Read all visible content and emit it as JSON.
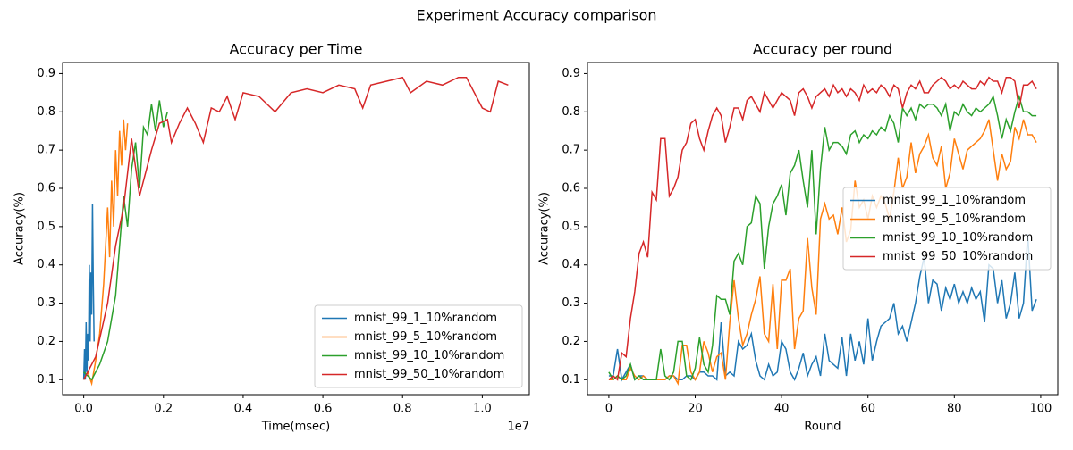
{
  "title": "Experiment Accuracy comparison",
  "chart_data": [
    {
      "type": "line",
      "title": "Accuracy per Time",
      "x_label": "Time(msec)",
      "y_label": "Accuracy(%)",
      "x_offset_label": "1e7",
      "xlim": [
        -0.053,
        1.118
      ],
      "ylim": [
        0.061,
        0.929
      ],
      "xticks": [
        {
          "value": 0,
          "label": "0.0"
        },
        0.2,
        0.4,
        0.6,
        0.8,
        {
          "value": 1,
          "label": "1.0"
        }
      ],
      "yticks": [
        0.1,
        0.2,
        0.3,
        0.4,
        0.5,
        0.6,
        0.7,
        0.8,
        0.9
      ],
      "legend": "lower right",
      "series": [
        {
          "name": "mnist_99_1_10%random",
          "color": "#1f77b4",
          "x": [
            0,
            0.002,
            0.004,
            0.006,
            0.008,
            0.01,
            0.012,
            0.014,
            0.016,
            0.018,
            0.02,
            0.022,
            0.024,
            0.026
          ],
          "values": [
            0.1,
            0.18,
            0.1,
            0.25,
            0.12,
            0.22,
            0.15,
            0.4,
            0.2,
            0.38,
            0.27,
            0.56,
            0.35,
            0.2
          ]
        },
        {
          "name": "mnist_99_5_10%random",
          "color": "#ff7f0e",
          "x": [
            0,
            0.01,
            0.02,
            0.03,
            0.04,
            0.05,
            0.06,
            0.065,
            0.07,
            0.075,
            0.08,
            0.085,
            0.09,
            0.095,
            0.1,
            0.105,
            0.11
          ],
          "values": [
            0.1,
            0.12,
            0.09,
            0.15,
            0.22,
            0.35,
            0.55,
            0.42,
            0.62,
            0.5,
            0.7,
            0.58,
            0.75,
            0.66,
            0.78,
            0.7,
            0.77
          ]
        },
        {
          "name": "mnist_99_10_10%random",
          "color": "#2ca02c",
          "x": [
            0,
            0.02,
            0.04,
            0.06,
            0.08,
            0.09,
            0.1,
            0.11,
            0.12,
            0.13,
            0.14,
            0.15,
            0.16,
            0.17,
            0.18,
            0.19,
            0.2,
            0.21
          ],
          "values": [
            0.12,
            0.1,
            0.14,
            0.2,
            0.32,
            0.45,
            0.58,
            0.5,
            0.65,
            0.72,
            0.6,
            0.76,
            0.74,
            0.82,
            0.75,
            0.83,
            0.76,
            0.8
          ]
        },
        {
          "name": "mnist_99_50_10%random",
          "color": "#d62728",
          "x": [
            0,
            0.03,
            0.06,
            0.08,
            0.1,
            0.12,
            0.14,
            0.15,
            0.17,
            0.19,
            0.21,
            0.22,
            0.24,
            0.26,
            0.28,
            0.3,
            0.32,
            0.34,
            0.36,
            0.38,
            0.4,
            0.44,
            0.48,
            0.52,
            0.56,
            0.6,
            0.64,
            0.68,
            0.7,
            0.72,
            0.76,
            0.8,
            0.82,
            0.86,
            0.9,
            0.94,
            0.96,
            1.0,
            1.02,
            1.04,
            1.065
          ],
          "values": [
            0.1,
            0.16,
            0.3,
            0.45,
            0.55,
            0.73,
            0.58,
            0.62,
            0.7,
            0.77,
            0.78,
            0.72,
            0.77,
            0.81,
            0.77,
            0.72,
            0.81,
            0.8,
            0.84,
            0.78,
            0.85,
            0.84,
            0.8,
            0.85,
            0.86,
            0.85,
            0.87,
            0.86,
            0.81,
            0.87,
            0.88,
            0.89,
            0.85,
            0.88,
            0.87,
            0.89,
            0.89,
            0.81,
            0.8,
            0.88,
            0.87
          ]
        }
      ]
    },
    {
      "type": "line",
      "title": "Accuracy per round",
      "x_label": "Round",
      "y_label": "Accuracy(%)",
      "xlim": [
        -4.95,
        103.95
      ],
      "ylim": [
        0.061,
        0.929
      ],
      "xticks": [
        0,
        20,
        40,
        60,
        80,
        100
      ],
      "yticks": [
        0.1,
        0.2,
        0.3,
        0.4,
        0.5,
        0.6,
        0.7,
        0.8,
        0.9
      ],
      "legend": "center right",
      "x": [
        0,
        1,
        2,
        3,
        4,
        5,
        6,
        7,
        8,
        9,
        10,
        11,
        12,
        13,
        14,
        15,
        16,
        17,
        18,
        19,
        20,
        21,
        22,
        23,
        24,
        25,
        26,
        27,
        28,
        29,
        30,
        31,
        32,
        33,
        34,
        35,
        36,
        37,
        38,
        39,
        40,
        41,
        42,
        43,
        44,
        45,
        46,
        47,
        48,
        49,
        50,
        51,
        52,
        53,
        54,
        55,
        56,
        57,
        58,
        59,
        60,
        61,
        62,
        63,
        64,
        65,
        66,
        67,
        68,
        69,
        70,
        71,
        72,
        73,
        74,
        75,
        76,
        77,
        78,
        79,
        80,
        81,
        82,
        83,
        84,
        85,
        86,
        87,
        88,
        89,
        90,
        91,
        92,
        93,
        94,
        95,
        96,
        97,
        98,
        99
      ],
      "series": [
        {
          "name": "mnist_99_1_10%random",
          "color": "#1f77b4",
          "values": [
            0.11,
            0.11,
            0.18,
            0.1,
            0.12,
            0.14,
            0.1,
            0.11,
            0.11,
            0.1,
            0.1,
            0.1,
            0.1,
            0.1,
            0.11,
            0.11,
            0.1,
            0.1,
            0.11,
            0.11,
            0.1,
            0.12,
            0.12,
            0.11,
            0.11,
            0.1,
            0.25,
            0.11,
            0.12,
            0.11,
            0.2,
            0.18,
            0.19,
            0.22,
            0.15,
            0.11,
            0.1,
            0.14,
            0.11,
            0.12,
            0.2,
            0.18,
            0.12,
            0.1,
            0.13,
            0.17,
            0.11,
            0.14,
            0.16,
            0.11,
            0.22,
            0.15,
            0.14,
            0.13,
            0.21,
            0.11,
            0.22,
            0.15,
            0.2,
            0.14,
            0.26,
            0.15,
            0.2,
            0.24,
            0.25,
            0.26,
            0.3,
            0.22,
            0.24,
            0.2,
            0.25,
            0.3,
            0.37,
            0.42,
            0.3,
            0.36,
            0.35,
            0.28,
            0.34,
            0.31,
            0.35,
            0.3,
            0.33,
            0.3,
            0.34,
            0.31,
            0.33,
            0.25,
            0.4,
            0.39,
            0.3,
            0.36,
            0.26,
            0.3,
            0.38,
            0.26,
            0.3,
            0.48,
            0.28,
            0.31
          ]
        },
        {
          "name": "mnist_99_5_10%random",
          "color": "#ff7f0e",
          "values": [
            0.1,
            0.1,
            0.11,
            0.1,
            0.1,
            0.13,
            0.11,
            0.1,
            0.11,
            0.1,
            0.1,
            0.1,
            0.1,
            0.1,
            0.11,
            0.11,
            0.09,
            0.19,
            0.19,
            0.12,
            0.1,
            0.12,
            0.2,
            0.17,
            0.12,
            0.16,
            0.17,
            0.1,
            0.25,
            0.36,
            0.26,
            0.19,
            0.22,
            0.27,
            0.31,
            0.37,
            0.22,
            0.2,
            0.35,
            0.18,
            0.36,
            0.36,
            0.39,
            0.18,
            0.26,
            0.28,
            0.47,
            0.34,
            0.27,
            0.52,
            0.56,
            0.52,
            0.53,
            0.48,
            0.55,
            0.46,
            0.49,
            0.62,
            0.55,
            0.57,
            0.52,
            0.58,
            0.55,
            0.58,
            0.56,
            0.52,
            0.59,
            0.68,
            0.6,
            0.63,
            0.72,
            0.64,
            0.69,
            0.71,
            0.74,
            0.68,
            0.66,
            0.71,
            0.6,
            0.64,
            0.73,
            0.69,
            0.65,
            0.7,
            0.71,
            0.72,
            0.73,
            0.75,
            0.78,
            0.7,
            0.62,
            0.69,
            0.65,
            0.67,
            0.76,
            0.73,
            0.78,
            0.74,
            0.74,
            0.72
          ]
        },
        {
          "name": "mnist_99_10_10%random",
          "color": "#2ca02c",
          "values": [
            0.12,
            0.1,
            0.11,
            0.1,
            0.11,
            0.14,
            0.1,
            0.11,
            0.1,
            0.1,
            0.1,
            0.1,
            0.18,
            0.11,
            0.1,
            0.12,
            0.2,
            0.2,
            0.11,
            0.1,
            0.13,
            0.21,
            0.14,
            0.12,
            0.19,
            0.32,
            0.31,
            0.31,
            0.27,
            0.41,
            0.43,
            0.4,
            0.5,
            0.51,
            0.58,
            0.56,
            0.39,
            0.5,
            0.56,
            0.58,
            0.61,
            0.53,
            0.64,
            0.66,
            0.7,
            0.62,
            0.55,
            0.7,
            0.48,
            0.65,
            0.76,
            0.7,
            0.72,
            0.72,
            0.71,
            0.69,
            0.74,
            0.75,
            0.72,
            0.74,
            0.73,
            0.75,
            0.74,
            0.76,
            0.75,
            0.79,
            0.77,
            0.72,
            0.81,
            0.79,
            0.81,
            0.78,
            0.82,
            0.81,
            0.82,
            0.82,
            0.81,
            0.79,
            0.82,
            0.75,
            0.8,
            0.79,
            0.82,
            0.8,
            0.79,
            0.81,
            0.8,
            0.81,
            0.82,
            0.84,
            0.79,
            0.73,
            0.78,
            0.75,
            0.8,
            0.84,
            0.8,
            0.8,
            0.79,
            0.79
          ]
        },
        {
          "name": "mnist_99_50_10%random",
          "color": "#d62728",
          "values": [
            0.1,
            0.11,
            0.1,
            0.17,
            0.16,
            0.26,
            0.33,
            0.43,
            0.46,
            0.42,
            0.59,
            0.57,
            0.73,
            0.73,
            0.58,
            0.6,
            0.63,
            0.7,
            0.72,
            0.77,
            0.78,
            0.73,
            0.7,
            0.75,
            0.79,
            0.81,
            0.79,
            0.72,
            0.76,
            0.81,
            0.81,
            0.78,
            0.83,
            0.84,
            0.82,
            0.8,
            0.85,
            0.83,
            0.81,
            0.83,
            0.85,
            0.84,
            0.83,
            0.79,
            0.85,
            0.86,
            0.84,
            0.81,
            0.84,
            0.85,
            0.86,
            0.84,
            0.87,
            0.85,
            0.86,
            0.84,
            0.86,
            0.85,
            0.83,
            0.87,
            0.85,
            0.86,
            0.85,
            0.87,
            0.86,
            0.84,
            0.87,
            0.86,
            0.81,
            0.85,
            0.87,
            0.86,
            0.88,
            0.85,
            0.85,
            0.87,
            0.88,
            0.89,
            0.88,
            0.86,
            0.87,
            0.86,
            0.88,
            0.87,
            0.86,
            0.86,
            0.88,
            0.87,
            0.89,
            0.88,
            0.88,
            0.85,
            0.89,
            0.89,
            0.88,
            0.81,
            0.87,
            0.87,
            0.88,
            0.86
          ]
        }
      ]
    }
  ]
}
